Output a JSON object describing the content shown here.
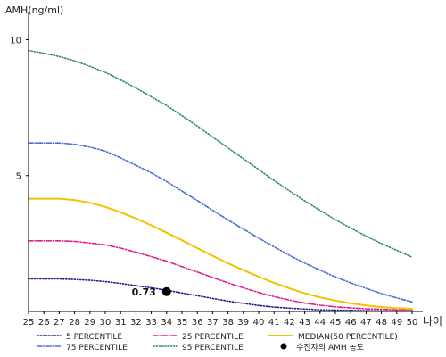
{
  "chart_data": {
    "type": "line",
    "ylabel": "AMH(ng/ml)",
    "xlabel": "나이",
    "xlim": [
      25,
      50
    ],
    "ylim": [
      0,
      11
    ],
    "x_ticks": [
      25,
      26,
      27,
      28,
      29,
      30,
      31,
      32,
      33,
      34,
      35,
      36,
      37,
      38,
      39,
      40,
      41,
      42,
      43,
      44,
      45,
      46,
      47,
      48,
      49,
      50
    ],
    "y_ticks": [
      5,
      10
    ],
    "grid": false,
    "legend_position": "bottom",
    "series": [
      {
        "name": "5 PERCENTILE",
        "color": "#1a1a8c",
        "dash": "dotted",
        "x": [
          25,
          26,
          27,
          28,
          29,
          30,
          31,
          32,
          33,
          34,
          35,
          36,
          37,
          38,
          39,
          40,
          41,
          42,
          43,
          44,
          45,
          46,
          47,
          48,
          49,
          50
        ],
        "values": [
          1.2,
          1.2,
          1.2,
          1.18,
          1.15,
          1.1,
          1.03,
          0.95,
          0.87,
          0.78,
          0.68,
          0.58,
          0.48,
          0.38,
          0.3,
          0.22,
          0.16,
          0.12,
          0.09,
          0.06,
          0.05,
          0.04,
          0.03,
          0.02,
          0.02,
          0.02
        ]
      },
      {
        "name": "25 PERCENTILE",
        "color": "#e0208c",
        "dash": "dashdot",
        "x": [
          25,
          26,
          27,
          28,
          29,
          30,
          31,
          32,
          33,
          34,
          35,
          36,
          37,
          38,
          39,
          40,
          41,
          42,
          43,
          44,
          45,
          46,
          47,
          48,
          49,
          50
        ],
        "values": [
          2.6,
          2.6,
          2.6,
          2.58,
          2.52,
          2.45,
          2.33,
          2.18,
          2.02,
          1.85,
          1.65,
          1.45,
          1.25,
          1.05,
          0.87,
          0.7,
          0.55,
          0.42,
          0.31,
          0.23,
          0.17,
          0.13,
          0.1,
          0.08,
          0.06,
          0.05
        ]
      },
      {
        "name": "MEDIAN(50 PERCENTILE)",
        "color": "#f2c200",
        "dash": "solid",
        "x": [
          25,
          26,
          27,
          28,
          29,
          30,
          31,
          32,
          33,
          34,
          35,
          36,
          37,
          38,
          39,
          40,
          41,
          42,
          43,
          44,
          45,
          46,
          47,
          48,
          49,
          50
        ],
        "values": [
          4.15,
          4.15,
          4.15,
          4.1,
          4.0,
          3.85,
          3.65,
          3.42,
          3.17,
          2.9,
          2.62,
          2.33,
          2.05,
          1.77,
          1.52,
          1.28,
          1.05,
          0.85,
          0.67,
          0.52,
          0.4,
          0.3,
          0.22,
          0.16,
          0.12,
          0.1
        ]
      },
      {
        "name": "75 PERCENTILE",
        "color": "#4a6fd6",
        "dash": "dashdot",
        "x": [
          25,
          26,
          27,
          28,
          29,
          30,
          31,
          32,
          33,
          34,
          35,
          36,
          37,
          38,
          39,
          40,
          41,
          42,
          43,
          44,
          45,
          46,
          47,
          48,
          49,
          50
        ],
        "values": [
          6.2,
          6.2,
          6.2,
          6.15,
          6.05,
          5.9,
          5.65,
          5.38,
          5.1,
          4.78,
          4.43,
          4.08,
          3.72,
          3.37,
          3.03,
          2.7,
          2.38,
          2.07,
          1.78,
          1.52,
          1.27,
          1.05,
          0.85,
          0.66,
          0.5,
          0.35
        ]
      },
      {
        "name": "95 PERCENTILE",
        "color": "#2e8b57",
        "dash": "dotted",
        "x": [
          25,
          26,
          27,
          28,
          29,
          30,
          31,
          32,
          33,
          34,
          35,
          36,
          37,
          38,
          39,
          40,
          41,
          42,
          43,
          44,
          45,
          46,
          47,
          48,
          49,
          50
        ],
        "values": [
          9.6,
          9.5,
          9.38,
          9.22,
          9.02,
          8.8,
          8.52,
          8.22,
          7.9,
          7.58,
          7.2,
          6.82,
          6.42,
          6.02,
          5.62,
          5.22,
          4.82,
          4.44,
          4.07,
          3.72,
          3.38,
          3.07,
          2.77,
          2.5,
          2.25,
          2.0
        ]
      }
    ],
    "marker": {
      "name": "수진자의 AMH 농도",
      "x": 34,
      "y": 0.73,
      "label": "0.73",
      "color": "#000000"
    }
  }
}
